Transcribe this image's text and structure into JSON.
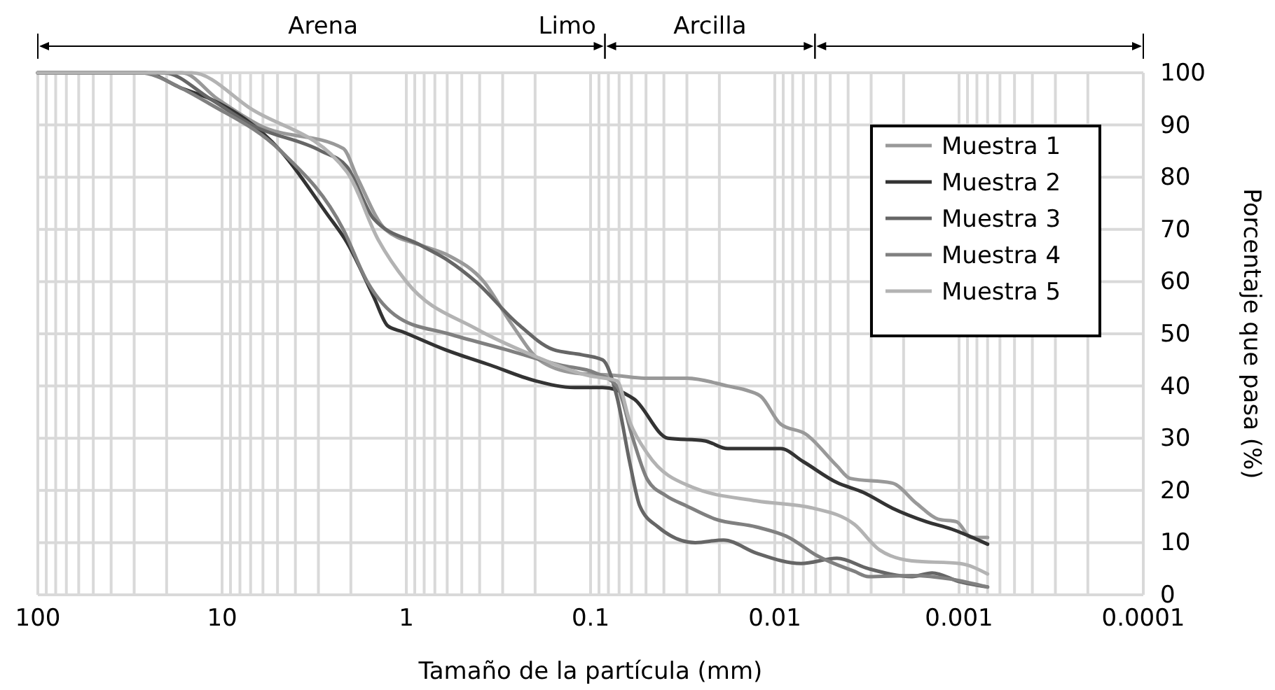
{
  "chart_data": {
    "type": "line",
    "xlabel": "Tamaño de la partícula (mm)",
    "ylabel": "Porcentaje que pasa (%)",
    "log": "x",
    "xlim": [
      100,
      0.0001
    ],
    "xticks": [
      100,
      10,
      1,
      0.1,
      0.01,
      0.001,
      0.0001
    ],
    "ylim": [
      0,
      100
    ],
    "yticks": [
      0,
      10,
      20,
      30,
      40,
      50,
      60,
      70,
      80,
      90,
      100
    ],
    "grid": true,
    "legend": "right",
    "annotations": [
      "Arena",
      "Limo",
      "Arcilla"
    ],
    "series": [
      {
        "name": "Muestra 1",
        "color": "#999999",
        "x": [
          100,
          16.5,
          10.6,
          6.3,
          2.2,
          1.85,
          1.3,
          0.84,
          0.59,
          0.38,
          0.27,
          0.19,
          0.122,
          0.072,
          0.051,
          0.03,
          0.018,
          0.0137,
          0.0119,
          0.0093,
          0.0068,
          0.0046,
          0.0039,
          0.0023,
          0.0017,
          0.0013,
          0.00103,
          0.00086,
          0.0007
        ],
        "values": [
          100,
          100,
          95,
          90,
          85.5,
          80,
          70,
          67,
          65,
          60,
          52,
          45,
          42.5,
          42,
          41.5,
          41.5,
          40,
          39,
          38,
          32.7,
          30.8,
          24.7,
          22.3,
          21.4,
          17.5,
          14.5,
          14,
          11,
          11
        ]
      },
      {
        "name": "Muestra 2",
        "color": "#333333",
        "x": [
          100,
          26.4,
          16.5,
          11.6,
          4.8,
          2.7,
          2.1,
          1.5,
          1.26,
          1.05,
          0.62,
          0.35,
          0.2,
          0.122,
          0.086,
          0.061,
          0.058,
          0.038,
          0.024,
          0.018,
          0.0093,
          0.007,
          0.0046,
          0.0033,
          0.0023,
          0.0015,
          0.0011,
          0.0007
        ],
        "values": [
          100,
          100,
          97,
          95,
          85,
          73,
          67.5,
          57,
          51.5,
          50.4,
          47,
          44,
          41,
          39.7,
          39.7,
          38,
          37.5,
          30,
          29.5,
          28,
          28,
          25.5,
          21.5,
          19.6,
          16.6,
          14,
          12.6,
          9.7
        ]
      },
      {
        "name": "Muestra 3",
        "color": "#666666",
        "x": [
          100,
          20.7,
          11.6,
          6.9,
          2.9,
          2.1,
          1.5,
          0.84,
          0.59,
          0.42,
          0.25,
          0.16,
          0.112,
          0.086,
          0.072,
          0.061,
          0.054,
          0.043,
          0.027,
          0.019,
          0.0126,
          0.0072,
          0.0046,
          0.0031,
          0.0018,
          0.0014,
          0.00099,
          0.0007
        ],
        "values": [
          100,
          100,
          95,
          90,
          85,
          82,
          72,
          67,
          64,
          60,
          52,
          47,
          46,
          45,
          38,
          25,
          17,
          13,
          10,
          10.5,
          8,
          6,
          7,
          5,
          3.5,
          4.2,
          2.5,
          1.5
        ]
      },
      {
        "name": "Muestra 4",
        "color": "#808080",
        "x": [
          100,
          27.9,
          16.5,
          11.6,
          4.8,
          2.2,
          1.63,
          1.09,
          0.59,
          0.29,
          0.146,
          0.094,
          0.072,
          0.059,
          0.049,
          0.039,
          0.03,
          0.021,
          0.0126,
          0.0084,
          0.0059,
          0.0037,
          0.0031,
          0.0018,
          0.0011,
          0.0007
        ],
        "values": [
          100,
          100,
          97,
          94,
          85,
          70,
          60,
          53,
          50,
          47,
          44,
          42.5,
          40,
          30,
          22,
          19,
          17,
          14.5,
          13,
          11,
          7.5,
          4.5,
          3.5,
          3.7,
          3,
          1.5
        ]
      },
      {
        "name": "Muestra 5",
        "color": "#b3b3b3",
        "x": [
          100,
          14.6,
          6.9,
          2.1,
          1.42,
          1.0,
          0.42,
          0.21,
          0.103,
          0.072,
          0.061,
          0.049,
          0.028,
          0.0126,
          0.0062,
          0.0037,
          0.0027,
          0.0018,
          0.00099,
          0.0007
        ],
        "values": [
          100,
          100,
          93,
          81,
          68,
          60,
          51,
          46,
          42,
          41,
          33,
          27,
          20.6,
          18,
          16.6,
          13.5,
          8.6,
          6.5,
          6,
          4
        ]
      }
    ]
  }
}
